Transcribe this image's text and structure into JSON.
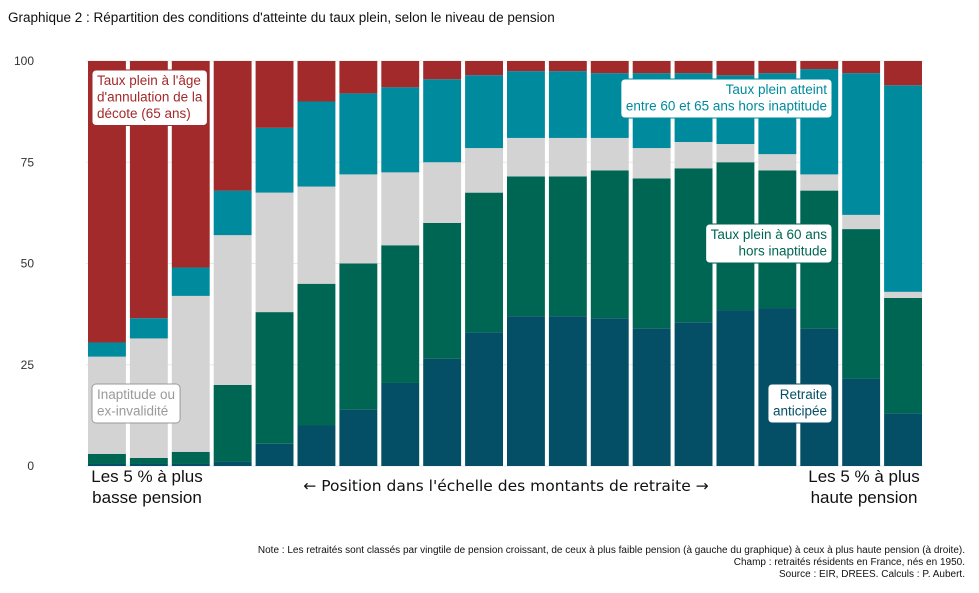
{
  "title": "Graphique 2 : Répartition des conditions d'atteinte du taux plein, selon le niveau de pension",
  "colors": {
    "anticipee": "#044f66",
    "taux60": "#006654",
    "inaptitude": "#d3d3d3",
    "entre6065": "#008a9e",
    "decote65": "#a32a2a",
    "label_decote": "#a32a2a",
    "label_inaptitude": "#9a9a9a",
    "label_entre6065": "#008a9e",
    "label_taux60": "#006654",
    "label_anticipee": "#044f66"
  },
  "chart_data": {
    "type": "bar",
    "stacked": true,
    "x": [
      "1",
      "2",
      "3",
      "4",
      "5",
      "6",
      "7",
      "8",
      "9",
      "10",
      "11",
      "12",
      "13",
      "14",
      "15",
      "16",
      "17",
      "18",
      "19",
      "20"
    ],
    "ylim": [
      0,
      100
    ],
    "yticks": [
      0,
      25,
      50,
      75,
      100
    ],
    "series": [
      {
        "name": "Retraite anticipée",
        "color_key": "anticipee",
        "values": [
          0.5,
          0.5,
          0.5,
          1,
          5.5,
          10,
          14,
          20.5,
          26.5,
          33,
          37,
          37,
          36.5,
          34,
          35.5,
          38.5,
          39,
          34,
          21.5,
          13
        ]
      },
      {
        "name": "Taux plein à 60 ans hors inaptitude",
        "color_key": "taux60",
        "values": [
          2.5,
          1.5,
          3,
          19,
          32.5,
          35,
          36,
          34,
          33.5,
          34.5,
          34.5,
          34.5,
          36.5,
          37,
          38,
          36.5,
          34,
          34,
          37,
          28.5
        ]
      },
      {
        "name": "Inaptitude ou ex-invalidité",
        "color_key": "inaptitude",
        "values": [
          24,
          29.5,
          38.5,
          37,
          29.5,
          24,
          22,
          18,
          15,
          11,
          9.5,
          9.5,
          8,
          7.5,
          6.5,
          4.5,
          4,
          4,
          3.5,
          1.5
        ]
      },
      {
        "name": "Taux plein atteint entre 60 et 65 ans hors inaptitude",
        "color_key": "entre6065",
        "values": [
          3.5,
          5,
          7,
          11,
          16,
          21,
          20,
          21,
          20.5,
          18,
          16.5,
          16.5,
          16,
          18.5,
          17,
          17,
          20,
          26,
          35,
          51
        ]
      },
      {
        "name": "Taux plein à l'âge d'annulation de la décote (65 ans)",
        "color_key": "decote65",
        "values": [
          69.5,
          63.5,
          51,
          32,
          16.5,
          10,
          8,
          6.5,
          4.5,
          3.5,
          2.5,
          2.5,
          3,
          3,
          3,
          3.5,
          3,
          2,
          3,
          6
        ]
      }
    ],
    "annotations": [
      {
        "lines": [
          "Taux plein à l'âge",
          "d'annulation de la",
          "décote (65 ans)"
        ],
        "color_key": "label_decote",
        "position": "top-left"
      },
      {
        "lines": [
          "Inaptitude ou",
          "ex-invalidité"
        ],
        "color_key": "label_inaptitude",
        "position": "bottom-left"
      },
      {
        "lines": [
          "Taux plein atteint",
          "entre 60 et 65 ans hors inaptitude"
        ],
        "color_key": "label_entre6065",
        "position": "top-right"
      },
      {
        "lines": [
          "Taux plein à 60 ans",
          "hors inaptitude"
        ],
        "color_key": "label_taux60",
        "position": "middle-right"
      },
      {
        "lines": [
          "Retraite",
          "anticipée"
        ],
        "color_key": "label_anticipee",
        "position": "bottom-right"
      }
    ],
    "x_axis_notes": {
      "left": [
        "Les 5 % à plus",
        "basse pension"
      ],
      "middle": "← Position dans l'échelle des montants de retraite →",
      "right": [
        "Les 5 % à plus",
        "haute pension"
      ]
    }
  },
  "footer": {
    "note": "Note : Les retraités sont classés par vingtile de pension croissant, de ceux à plus faible pension (à gauche du graphique) à ceux à plus haute pension (à droite).",
    "champ": "Champ : retraités résidents en France, nés en 1950.",
    "source": "Source : EIR, DREES. Calculs : P. Aubert."
  }
}
